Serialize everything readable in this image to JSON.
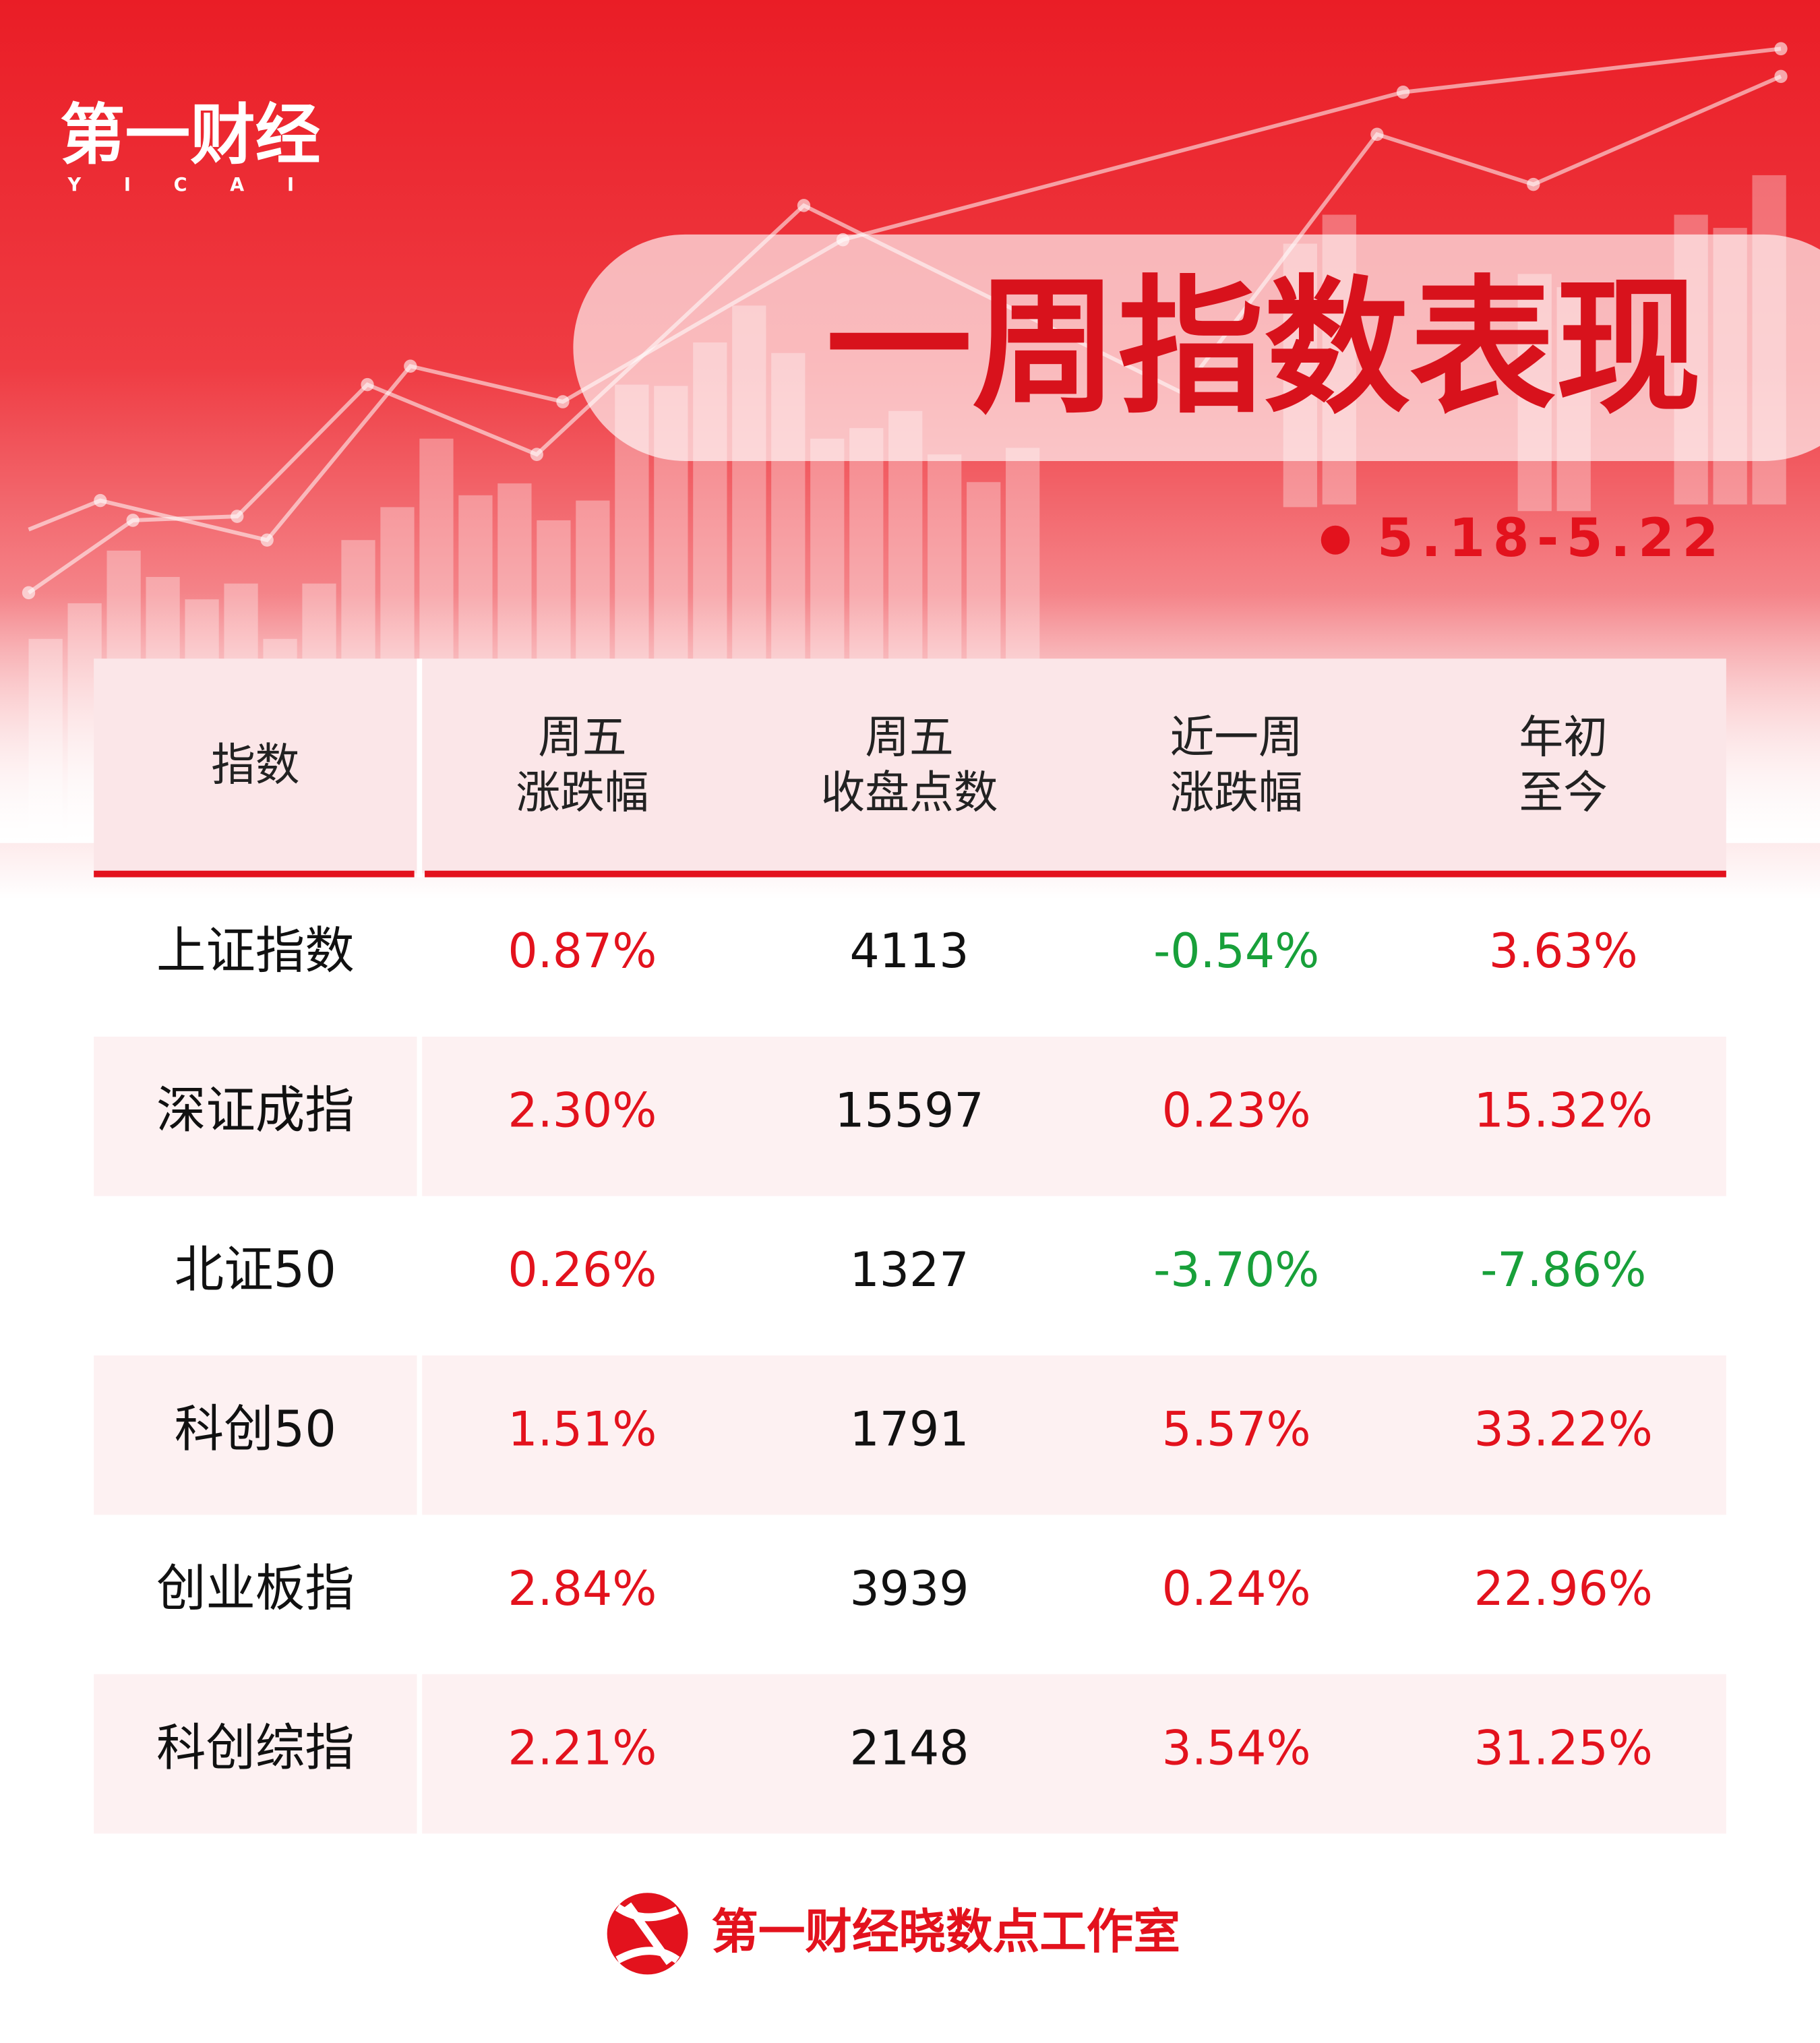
{
  "logo": {
    "name": "第一财经",
    "latin": "YICAI"
  },
  "title": "一周指数表现",
  "date": "5.18-5.22",
  "table": {
    "header": [
      [
        "指数"
      ],
      [
        "周五",
        "涨跌幅"
      ],
      [
        "周五",
        "收盘点数"
      ],
      [
        "近一周",
        "涨跌幅"
      ],
      [
        "年初",
        "至今"
      ]
    ],
    "rows": [
      [
        "上证指数",
        "0.87%",
        "4113",
        "-0.54%",
        "3.63%"
      ],
      [
        "深证成指",
        "2.30%",
        "15597",
        "0.23%",
        "15.32%"
      ],
      [
        "北证50",
        "0.26%",
        "1327",
        "-3.70%",
        "-7.86%"
      ],
      [
        "科创50",
        "1.51%",
        "1791",
        "5.57%",
        "33.22%"
      ],
      [
        "创业板指",
        "2.84%",
        "3939",
        "0.24%",
        "22.96%"
      ],
      [
        "科创综指",
        "2.21%",
        "2148",
        "3.54%",
        "31.25%"
      ]
    ]
  },
  "footer": "第一财经晓数点工作室"
}
